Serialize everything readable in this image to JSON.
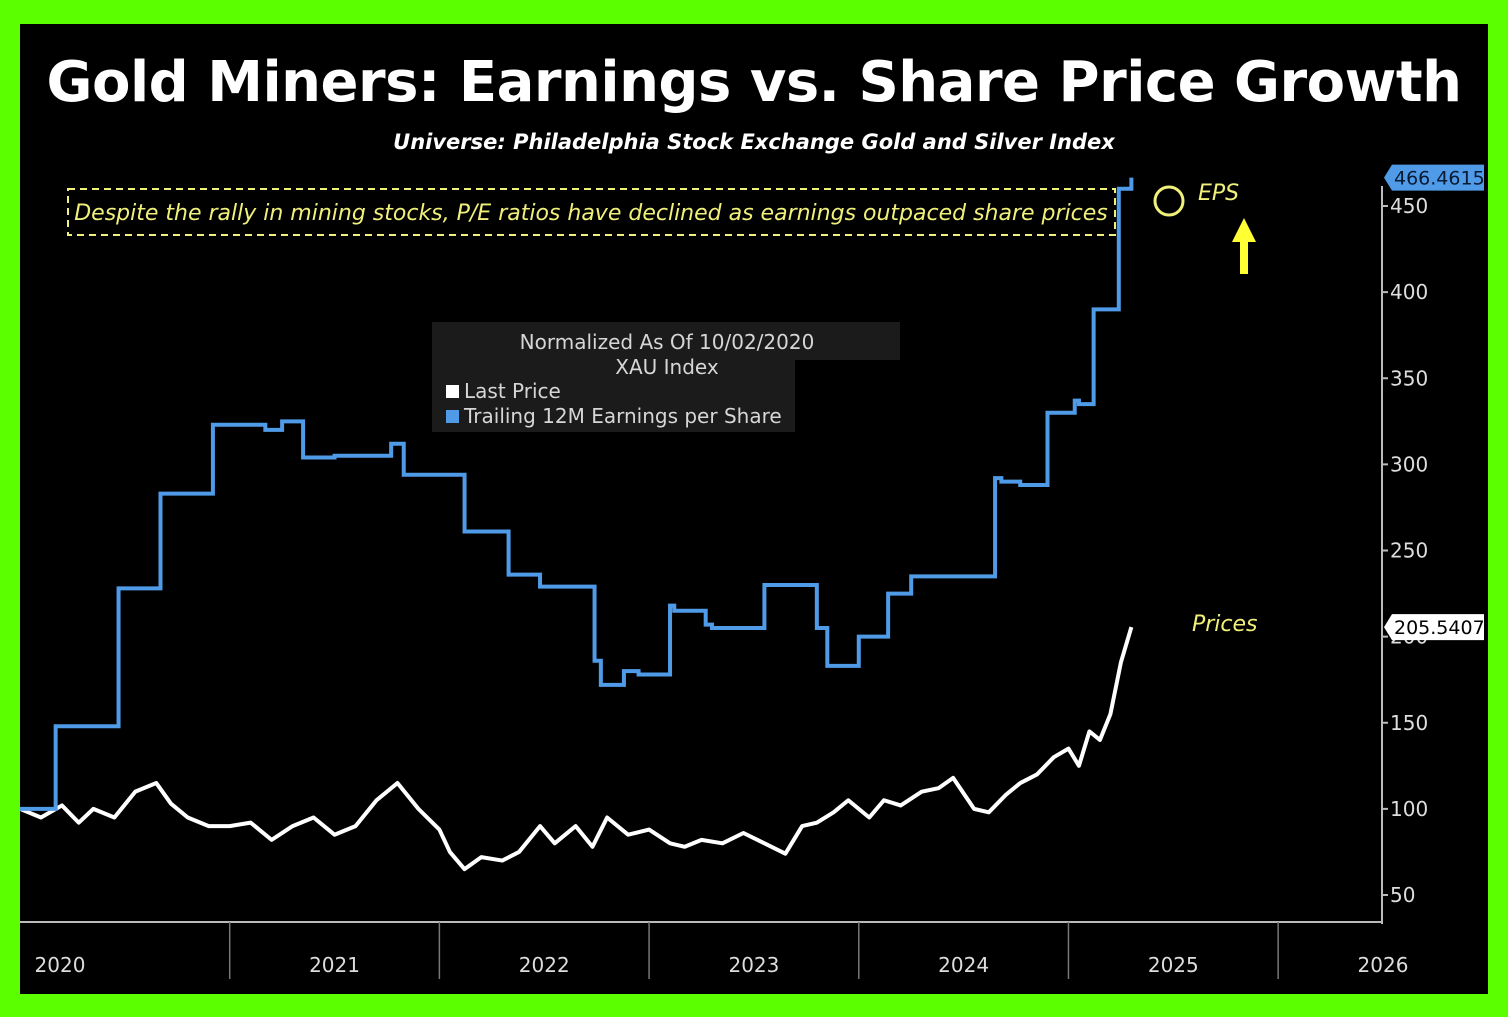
{
  "title": "Gold Miners: Earnings vs. Share Price Growth",
  "subtitle": "Universe: Philadelphia Stock Exchange Gold and Silver Index",
  "annotation": "Despite the rally in mining stocks, P/E ratios have declined as earnings outpaced share prices",
  "labels": {
    "eps": "EPS",
    "prices": "Prices"
  },
  "legend": {
    "title_line1": "Normalized As Of 10/02/2020",
    "title_line2": "XAU Index",
    "items": [
      {
        "label": "Last Price",
        "color": "#ffffff"
      },
      {
        "label": "Trailing 12M Earnings per Share",
        "color": "#4f9be8"
      }
    ]
  },
  "colors": {
    "background": "#000000",
    "frame": "#5cff00",
    "eps": "#4f9be8",
    "price": "#ffffff",
    "annotation": "#f0f07a",
    "arrow": "#ffff33"
  },
  "chart_data": {
    "type": "line",
    "title": "Gold Miners: Earnings vs. Share Price Growth",
    "subtitle": "Universe: Philadelphia Stock Exchange Gold and Silver Index",
    "xlim": [
      2020.0,
      2026.5
    ],
    "ylim": [
      25,
      480
    ],
    "y_ticks": [
      50,
      100,
      150,
      200,
      250,
      300,
      350,
      400,
      450
    ],
    "x_tick_labels": [
      "2020",
      "2021",
      "2022",
      "2023",
      "2024",
      "2025",
      "2026"
    ],
    "grid": false,
    "legend_position": "upper-center",
    "last_values": {
      "eps": "466.4615",
      "price": "205.5407"
    },
    "series": [
      {
        "name": "Trailing 12M Earnings per Share",
        "step": true,
        "x": [
          2020.0,
          2020.17,
          2020.47,
          2020.67,
          2020.92,
          2021.17,
          2021.25,
          2021.35,
          2021.5,
          2021.77,
          2021.83,
          2021.95,
          2022.12,
          2022.25,
          2022.33,
          2022.48,
          2022.74,
          2022.77,
          2022.88,
          2022.95,
          2023.1,
          2023.12,
          2023.27,
          2023.3,
          2023.55,
          2023.6,
          2023.8,
          2023.85,
          2024.0,
          2024.1,
          2024.14,
          2024.25,
          2024.45,
          2024.65,
          2024.68,
          2024.77,
          2024.9,
          2025.03,
          2025.05,
          2025.12,
          2025.24,
          2025.3
        ],
        "values": [
          100,
          148,
          228,
          283,
          323,
          320,
          325,
          304,
          305,
          312,
          294,
          294,
          261,
          261,
          236,
          229,
          186,
          172,
          180,
          178,
          218,
          215,
          207,
          205,
          230,
          230,
          205,
          183,
          200,
          200,
          225,
          235,
          235,
          292,
          290,
          288,
          330,
          337,
          335,
          390,
          460,
          466.4615
        ]
      },
      {
        "name": "Last Price",
        "step": false,
        "x": [
          2020.0,
          2020.1,
          2020.2,
          2020.28,
          2020.35,
          2020.45,
          2020.55,
          2020.65,
          2020.72,
          2020.8,
          2020.9,
          2021.0,
          2021.1,
          2021.2,
          2021.3,
          2021.4,
          2021.5,
          2021.6,
          2021.7,
          2021.8,
          2021.9,
          2022.0,
          2022.05,
          2022.12,
          2022.2,
          2022.3,
          2022.38,
          2022.48,
          2022.55,
          2022.65,
          2022.73,
          2022.8,
          2022.9,
          2023.0,
          2023.1,
          2023.17,
          2023.25,
          2023.35,
          2023.45,
          2023.55,
          2023.65,
          2023.73,
          2023.8,
          2023.88,
          2023.95,
          2024.05,
          2024.12,
          2024.2,
          2024.3,
          2024.38,
          2024.45,
          2024.55,
          2024.62,
          2024.7,
          2024.77,
          2024.85,
          2024.93,
          2025.0,
          2025.05,
          2025.1,
          2025.15,
          2025.2,
          2025.25,
          2025.3
        ],
        "values": [
          100,
          95,
          102,
          92,
          100,
          95,
          110,
          115,
          103,
          95,
          90,
          90,
          92,
          82,
          90,
          95,
          85,
          90,
          105,
          115,
          100,
          88,
          75,
          65,
          72,
          70,
          75,
          90,
          80,
          90,
          78,
          95,
          85,
          88,
          80,
          78,
          82,
          80,
          86,
          80,
          74,
          90,
          92,
          98,
          105,
          95,
          105,
          102,
          110,
          112,
          118,
          100,
          98,
          108,
          115,
          120,
          130,
          135,
          125,
          145,
          140,
          155,
          185,
          205.5407
        ]
      }
    ]
  }
}
